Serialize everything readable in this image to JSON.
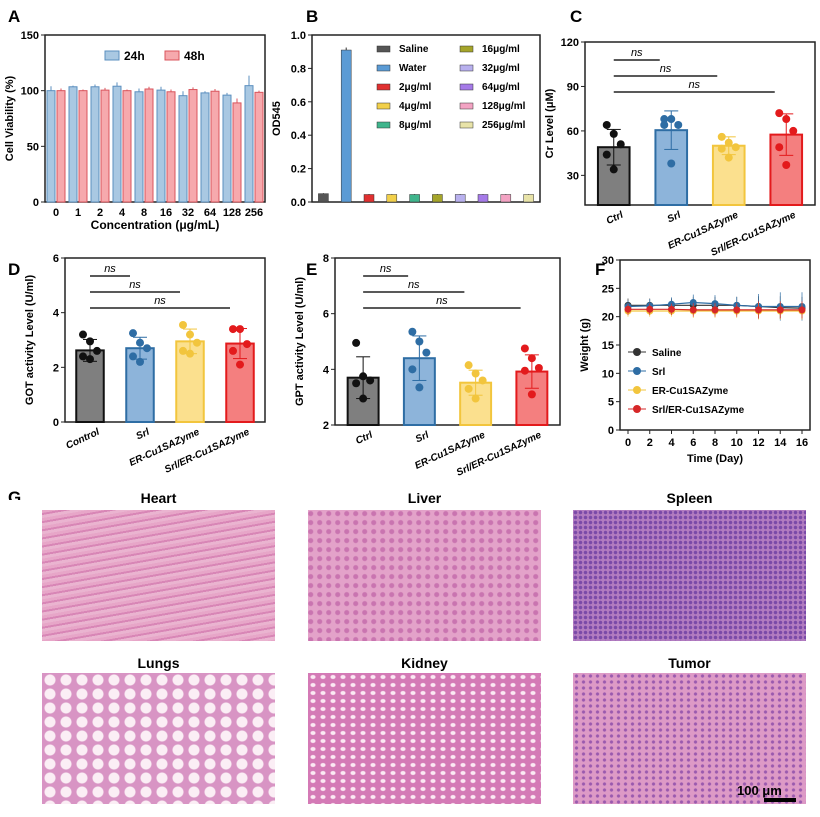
{
  "panel_letters": [
    "A",
    "B",
    "C",
    "D",
    "E",
    "F",
    "G"
  ],
  "chart_data": [
    {
      "id": "A",
      "type": "bar",
      "xlabel": "Concentration (μg/mL)",
      "ylabel": "Cell Viability (%)",
      "ylim": [
        0,
        150
      ],
      "yticks": [
        0,
        50,
        100,
        150
      ],
      "legend": "top",
      "grid": false,
      "categories": [
        "0",
        "1",
        "2",
        "4",
        "8",
        "16",
        "32",
        "64",
        "128",
        "256"
      ],
      "series": [
        {
          "name": "24h",
          "color": "#a9c8e2",
          "edge": "#5b8fbf",
          "values": [
            100,
            103.5,
            103.5,
            104,
            99,
            100.5,
            95.5,
            98,
            96,
            104.5
          ],
          "errors": [
            4,
            1,
            2,
            3.5,
            3,
            3,
            4,
            1.5,
            2,
            9
          ]
        },
        {
          "name": "48h",
          "color": "#f6a9ad",
          "edge": "#d9545c",
          "values": [
            100,
            100,
            100.5,
            100,
            101.5,
            99,
            101,
            99.5,
            89,
            98.5
          ],
          "errors": [
            2,
            1,
            2,
            1,
            2,
            2,
            2,
            2,
            4,
            1.5
          ]
        }
      ]
    },
    {
      "id": "B",
      "type": "bar",
      "ylabel": "OD545",
      "ylim": [
        0,
        1.0
      ],
      "yticks": [
        "0.0",
        "0.2",
        "0.4",
        "0.6",
        "0.8",
        "1.0"
      ],
      "legend": "top-right",
      "grid": false,
      "categories": [
        "Saline",
        "Water",
        "2μg/ml",
        "4μg/ml",
        "8μg/ml",
        "16μg/ml",
        "32μg/ml",
        "64μg/ml",
        "128μg/ml",
        "256μg/ml"
      ],
      "values": [
        0.05,
        0.91,
        0.045,
        0.045,
        0.045,
        0.045,
        0.045,
        0.045,
        0.045,
        0.045
      ],
      "errors": [
        0.003,
        0.015,
        0.003,
        0.003,
        0.003,
        0.003,
        0.003,
        0.003,
        0.003,
        0.003
      ],
      "colors": [
        "#555555",
        "#5b9bd5",
        "#e03030",
        "#f2d04a",
        "#3fb58c",
        "#a5a52a",
        "#b8b0ee",
        "#a57ae8",
        "#f3a3c3",
        "#e8e3a8"
      ]
    },
    {
      "id": "C",
      "type": "bar",
      "ylabel": "Cr Level (μM)",
      "ylim": [
        10,
        120
      ],
      "yticks": [
        30,
        60,
        90,
        120
      ],
      "categories": [
        "Ctrl",
        "Srl",
        "ER-Cu1SAZyme",
        "Srl/ER-Cu1SAZyme"
      ],
      "values": [
        49,
        60.5,
        50,
        57.5
      ],
      "errors": [
        12,
        13,
        6,
        14
      ],
      "points": [
        [
          64,
          58,
          51,
          44,
          34
        ],
        [
          68,
          68,
          64,
          64,
          38
        ],
        [
          56,
          52,
          49,
          48,
          42
        ],
        [
          72,
          68,
          60,
          49,
          37
        ]
      ],
      "annotations": [
        "ns",
        "ns",
        "ns"
      ]
    },
    {
      "id": "D",
      "type": "bar",
      "ylabel": "GOT activity Level (U/ml)",
      "ylim": [
        0,
        6
      ],
      "yticks": [
        0,
        2,
        4,
        6
      ],
      "categories": [
        "Control",
        "Srl",
        "ER-Cu1SAZyme",
        "Srl/ER-Cu1SAZyme"
      ],
      "values": [
        2.62,
        2.7,
        2.95,
        2.87
      ],
      "errors": [
        0.4,
        0.4,
        0.45,
        0.55
      ],
      "points": [
        [
          3.2,
          2.95,
          2.6,
          2.4,
          2.3
        ],
        [
          3.25,
          2.9,
          2.7,
          2.4,
          2.2
        ],
        [
          3.55,
          3.2,
          2.9,
          2.6,
          2.5
        ],
        [
          3.4,
          3.4,
          2.85,
          2.6,
          2.1
        ]
      ],
      "annotations": [
        "ns",
        "ns",
        "ns"
      ]
    },
    {
      "id": "E",
      "type": "bar",
      "ylabel": "GPT activity Level (U/ml)",
      "ylim": [
        2,
        8
      ],
      "yticks": [
        2,
        4,
        6,
        8
      ],
      "categories": [
        "Ctrl",
        "Srl",
        "ER-Cu1SAZyme",
        "Srl/ER-Cu1SAZyme"
      ],
      "values": [
        3.7,
        4.4,
        3.52,
        3.92
      ],
      "errors": [
        0.75,
        0.8,
        0.45,
        0.6
      ],
      "points": [
        [
          4.95,
          3.75,
          3.6,
          3.5,
          2.95
        ],
        [
          5.35,
          5.0,
          4.6,
          4.0,
          3.35
        ],
        [
          4.15,
          3.85,
          3.6,
          3.3,
          2.95
        ],
        [
          4.75,
          4.4,
          4.05,
          3.95,
          3.1
        ]
      ],
      "annotations": [
        "ns",
        "ns",
        "ns"
      ]
    },
    {
      "id": "F",
      "type": "line",
      "xlabel": "Time (Day)",
      "ylabel": "Weight (g)",
      "xlim": [
        0,
        16
      ],
      "ylim": [
        0,
        30
      ],
      "xticks": [
        0,
        2,
        4,
        6,
        8,
        10,
        12,
        14,
        16
      ],
      "yticks": [
        0,
        5,
        10,
        15,
        20,
        25,
        30
      ],
      "legend": "left",
      "x": [
        0,
        2,
        4,
        6,
        8,
        10,
        12,
        14,
        16
      ],
      "series": [
        {
          "name": "Saline",
          "color": "#333333",
          "marker": "circle",
          "values": [
            22,
            22,
            22,
            22,
            22,
            22,
            21.8,
            21.6,
            21.5
          ],
          "errors": [
            1.2,
            1.2,
            1.2,
            1.5,
            1.5,
            1.5,
            1.8,
            2,
            2
          ]
        },
        {
          "name": "Srl",
          "color": "#2e6da4",
          "marker": "square",
          "values": [
            21.8,
            21.9,
            22.2,
            22.5,
            22.3,
            22,
            21.8,
            21.8,
            21.8
          ],
          "errors": [
            1,
            1.2,
            1.2,
            1.4,
            1.5,
            1.5,
            2.2,
            2.5,
            2.5
          ]
        },
        {
          "name": "ER-Cu1SAZyme",
          "color": "#f2c53d",
          "marker": "triangle-up",
          "values": [
            21,
            21,
            21,
            21,
            21,
            21,
            21,
            21,
            21
          ],
          "errors": [
            1,
            1,
            1,
            1.2,
            1.2,
            1.2,
            1.5,
            1.5,
            1.5
          ]
        },
        {
          "name": "Srl/ER-Cu1SAZyme",
          "color": "#d62728",
          "marker": "triangle-down",
          "values": [
            21.3,
            21.3,
            21.3,
            21.2,
            21.2,
            21.2,
            21.2,
            21.2,
            21.2
          ],
          "errors": [
            1,
            1,
            1,
            1.2,
            1.2,
            1.2,
            1.5,
            1.5,
            1.5
          ]
        }
      ]
    }
  ],
  "histology": {
    "tiles": [
      "Heart",
      "Liver",
      "Spleen",
      "Lungs",
      "Kidney",
      "Tumor"
    ],
    "scale_bar": "100 μm"
  }
}
